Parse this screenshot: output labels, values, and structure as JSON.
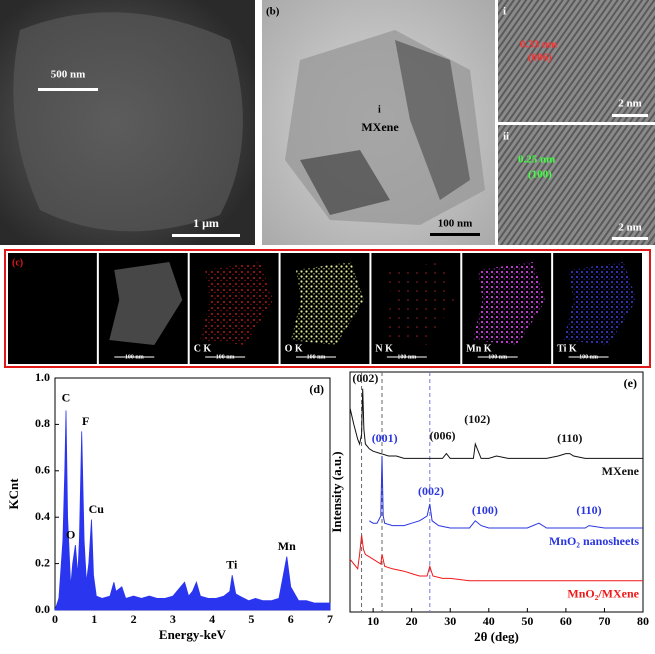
{
  "figure": {
    "a": {
      "inset_scale": "500 nm",
      "scale": "1 μm"
    },
    "b": {
      "label": "(b)",
      "marker": "i",
      "name": "MXene",
      "scale": "100 nm"
    },
    "b_i": {
      "label": "i",
      "spacing": "0.33 nm",
      "plane": "(006)",
      "scale": "2 nm"
    },
    "b_ii": {
      "label": "ii",
      "spacing": "0.25 nm",
      "plane": "(100)",
      "scale": "2 nm"
    },
    "c": {
      "label": "(c)",
      "maps": [
        {
          "element": null,
          "scale": "100 nm"
        },
        {
          "element": "C K",
          "scale": "100 nm"
        },
        {
          "element": "O K",
          "scale": "100 nm"
        },
        {
          "element": "N K",
          "scale": "100 nm"
        },
        {
          "element": "Mn K",
          "scale": "100 nm"
        },
        {
          "element": "Ti K",
          "scale": "100 nm"
        }
      ]
    }
  },
  "chart_data": [
    {
      "type": "area",
      "panel_label": "(d)",
      "x_label": "Energy-keV",
      "y_label": "KCnt",
      "color": "#2a35f0",
      "x": [
        0,
        0.1,
        0.2,
        0.25,
        0.28,
        0.32,
        0.4,
        0.45,
        0.52,
        0.58,
        0.62,
        0.68,
        0.74,
        0.8,
        0.86,
        0.93,
        0.98,
        1.05,
        1.2,
        1.4,
        1.5,
        1.55,
        1.7,
        1.8,
        2.0,
        2.2,
        2.4,
        2.6,
        2.8,
        3.0,
        3.2,
        3.3,
        3.4,
        3.5,
        3.6,
        3.7,
        3.9,
        4.1,
        4.3,
        4.45,
        4.51,
        4.6,
        4.7,
        4.93,
        5.1,
        5.3,
        5.5,
        5.7,
        5.8,
        5.9,
        6.0,
        6.2,
        6.4,
        6.6,
        6.8,
        7.0
      ],
      "values": [
        0,
        0.05,
        0.3,
        0.6,
        0.86,
        0.4,
        0.1,
        0.2,
        0.28,
        0.15,
        0.3,
        0.77,
        0.3,
        0.12,
        0.2,
        0.39,
        0.15,
        0.06,
        0.05,
        0.06,
        0.12,
        0.08,
        0.1,
        0.05,
        0.06,
        0.05,
        0.06,
        0.05,
        0.05,
        0.06,
        0.1,
        0.12,
        0.06,
        0.08,
        0.12,
        0.06,
        0.05,
        0.05,
        0.06,
        0.08,
        0.15,
        0.07,
        0.06,
        0.04,
        0.05,
        0.04,
        0.04,
        0.05,
        0.14,
        0.23,
        0.1,
        0.04,
        0.04,
        0.03,
        0.03,
        0.03
      ],
      "xlim": [
        0,
        7
      ],
      "ylim": [
        0,
        1.0
      ],
      "xticks": [
        0,
        1,
        2,
        3,
        4,
        5,
        6,
        7
      ],
      "yticks": [
        {
          "value": 0,
          "label": "0.0"
        },
        0.2,
        0.4,
        0.6,
        {
          "value": 0.8,
          "label": "0.8"
        },
        {
          "value": 1.0,
          "label": "1.0"
        }
      ],
      "annotations": [
        {
          "text": "C",
          "x": 0.28,
          "y": 0.91,
          "color": "#000"
        },
        {
          "text": "O",
          "x": 0.4,
          "y": 0.32,
          "color": "#000"
        },
        {
          "text": "F",
          "x": 0.78,
          "y": 0.81,
          "color": "#000"
        },
        {
          "text": "Cu",
          "x": 1.05,
          "y": 0.43,
          "color": "#000"
        },
        {
          "text": "Ti",
          "x": 4.5,
          "y": 0.19,
          "color": "#000"
        },
        {
          "text": "Mn",
          "x": 5.9,
          "y": 0.27,
          "color": "#000"
        }
      ]
    },
    {
      "type": "line",
      "panel_label": "(e)",
      "x_label": "2θ (deg)",
      "y_label": "Intensity (a.u.)",
      "xlim": [
        4,
        80
      ],
      "ylim": [
        0,
        100
      ],
      "xticks": [
        10,
        20,
        30,
        40,
        50,
        60,
        70,
        80
      ],
      "reference_lines": [
        {
          "x": 7,
          "color": "#666"
        },
        {
          "x": 12.3,
          "color": "#666"
        },
        {
          "x": 24.7,
          "color": "#7777dd"
        }
      ],
      "series": [
        {
          "name": "MXene",
          "color": "#111",
          "x": [
            4,
            5,
            6,
            6.5,
            7,
            7.3,
            7.6,
            8,
            9,
            10,
            12,
            14,
            16,
            18,
            20,
            22,
            24,
            26,
            28,
            29,
            30,
            32,
            35,
            36,
            36.5,
            38,
            40,
            42,
            45,
            50,
            55,
            58,
            60,
            61,
            62,
            65,
            70,
            75,
            80
          ],
          "values": [
            85,
            78,
            72,
            70,
            74,
            93,
            76,
            70,
            68,
            67,
            66,
            65,
            65,
            64,
            64,
            64,
            64,
            64,
            64,
            66,
            64,
            64,
            64,
            64,
            70,
            64,
            64,
            65,
            64,
            64,
            64,
            65,
            66,
            66,
            65,
            64,
            64,
            64,
            64
          ]
        },
        {
          "name": "MnO₂ nanosheets",
          "color": "#2a35e0",
          "x": [
            9,
            10,
            11,
            12,
            12.3,
            12.6,
            13,
            15,
            18,
            20,
            22,
            23,
            24,
            24.7,
            25.3,
            27,
            30,
            35,
            36.5,
            38,
            40,
            45,
            50,
            53,
            55,
            60,
            65,
            66,
            70,
            75,
            80
          ],
          "values": [
            38,
            37,
            37,
            40,
            65,
            40,
            37,
            36,
            36,
            37,
            38,
            39,
            40,
            45,
            38,
            36,
            35,
            35,
            38,
            36,
            35,
            35,
            35,
            37,
            35,
            35,
            35,
            36,
            35,
            35,
            35
          ]
        },
        {
          "name": "MnO₂/MXene",
          "color": "#f01818",
          "x": [
            4,
            5,
            6,
            6.5,
            7,
            7.5,
            8,
            9,
            10,
            12,
            12.3,
            13,
            15,
            18,
            20,
            22,
            24,
            24.7,
            25.5,
            28,
            30,
            35,
            40,
            45,
            50,
            55,
            60,
            65,
            70,
            75,
            80
          ],
          "values": [
            22,
            20,
            18,
            24,
            32,
            26,
            24,
            23,
            22,
            20,
            24,
            19,
            18,
            17,
            16,
            15,
            15,
            19,
            15,
            14,
            14,
            13,
            13,
            13,
            13,
            13,
            13,
            13,
            13,
            13,
            13
          ]
        }
      ],
      "annotations": [
        {
          "text": "(002)",
          "x": 8,
          "y": 97,
          "color": "#111"
        },
        {
          "text": "(006)",
          "x": 28,
          "y": 73,
          "color": "#111"
        },
        {
          "text": "(102)",
          "x": 37,
          "y": 80,
          "color": "#111"
        },
        {
          "text": "(110)",
          "x": 61,
          "y": 72,
          "color": "#111"
        },
        {
          "text": "(001)",
          "x": 13,
          "y": 72,
          "color": "#2a35e0"
        },
        {
          "text": "(002)",
          "x": 25,
          "y": 50,
          "color": "#2a35e0"
        },
        {
          "text": "(100)",
          "x": 39,
          "y": 42,
          "color": "#2a35e0"
        },
        {
          "text": "(110)",
          "x": 66,
          "y": 42,
          "color": "#2a35e0"
        }
      ]
    }
  ]
}
